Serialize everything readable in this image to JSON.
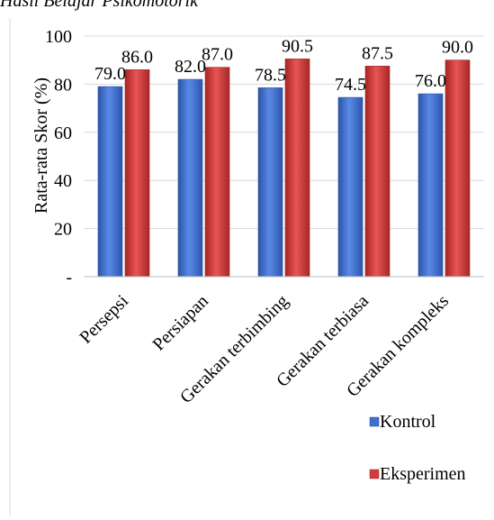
{
  "caption": "Hasil Belajar Psikomotorik",
  "chart_data": {
    "type": "bar",
    "title": "",
    "xlabel": "",
    "ylabel": "Rata-rata Skor (%)",
    "ylim": [
      0,
      100
    ],
    "yticks": [
      {
        "value": 0,
        "label": "-"
      },
      {
        "value": 20,
        "label": "20"
      },
      {
        "value": 40,
        "label": "40"
      },
      {
        "value": 60,
        "label": "60"
      },
      {
        "value": 80,
        "label": "80"
      },
      {
        "value": 100,
        "label": "100"
      }
    ],
    "categories": [
      "Persepsi",
      "Persiapan",
      "Gerakan terbimbing",
      "Gerakan terbiasa",
      "Gerakan kompleks"
    ],
    "series": [
      {
        "name": "Kontrol",
        "values": [
          79.0,
          82.0,
          78.5,
          74.5,
          76.0
        ],
        "labels": [
          "79.0",
          "82.0",
          "78.5",
          "74.5",
          "76.0"
        ],
        "color": "#3f6fd1"
      },
      {
        "name": "Eksperimen",
        "values": [
          86.0,
          87.0,
          90.5,
          87.5,
          90.0
        ],
        "labels": [
          "86.0",
          "87.0",
          "90.5",
          "87.5",
          "90.0"
        ],
        "color": "#d63b3b"
      }
    ],
    "grid": true,
    "legend": "bottom-right"
  }
}
